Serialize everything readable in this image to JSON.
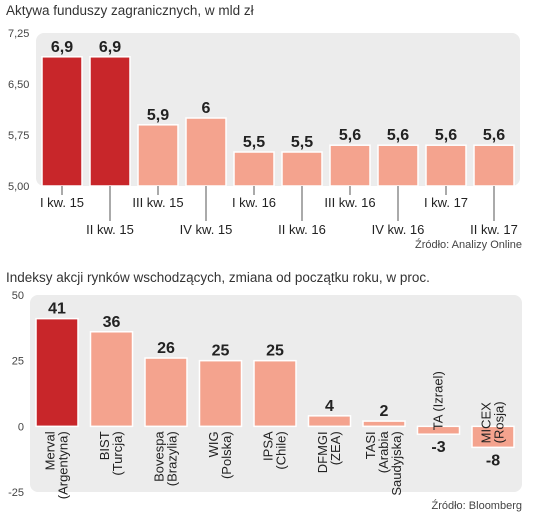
{
  "chart_data": [
    {
      "type": "bar",
      "title": "Aktywa funduszy zagranicznych, w mld zł",
      "source": "Źródło: Analizy Online",
      "categories": [
        "I kw. 15",
        "II kw. 15",
        "III kw. 15",
        "IV kw. 15",
        "I kw. 16",
        "II kw. 16",
        "III kw. 16",
        "IV kw. 16",
        "I kw. 17",
        "II kw. 17"
      ],
      "values": [
        6.9,
        6.9,
        5.9,
        6,
        5.5,
        5.5,
        5.6,
        5.6,
        5.6,
        5.6
      ],
      "value_labels": [
        "6,9",
        "6,9",
        "5,9",
        "6",
        "5,5",
        "5,5",
        "5,6",
        "5,6",
        "5,6",
        "5,6"
      ],
      "highlight": [
        true,
        true,
        false,
        false,
        false,
        false,
        false,
        false,
        false,
        false
      ],
      "yticks": [
        5.0,
        5.75,
        6.5,
        7.25
      ],
      "ytick_labels": [
        "5,00",
        "5,75",
        "6,50",
        "7,25"
      ],
      "ylim": [
        5.0,
        7.25
      ],
      "xlabel": "",
      "ylabel": "",
      "grid": false
    },
    {
      "type": "bar",
      "title": "Indeksy akcji rynków wschodzących, zmiana od początku roku, w proc.",
      "source": "Źródło: Bloomberg",
      "categories": [
        [
          "Merval",
          "(Argentyna)"
        ],
        [
          "BIST",
          "(Turcja)"
        ],
        [
          "Bovespa",
          "(Brazylia)"
        ],
        [
          "WIG",
          "(Polska)"
        ],
        [
          "IPSA",
          "(Chile)"
        ],
        [
          "DFMGI",
          "(ZEA)"
        ],
        [
          "TASI",
          "(Arabia",
          "Saudyjska)"
        ],
        [
          "TA (Izrael)"
        ],
        [
          "MICEX",
          "(Rosja)"
        ]
      ],
      "values": [
        41,
        36,
        26,
        25,
        25,
        4,
        2,
        -3,
        -8
      ],
      "value_labels": [
        "41",
        "36",
        "26",
        "25",
        "25",
        "4",
        "2",
        "-3",
        "-8"
      ],
      "highlight": [
        true,
        false,
        false,
        false,
        false,
        false,
        false,
        false,
        false
      ],
      "yticks": [
        -25,
        0,
        25,
        50
      ],
      "ytick_labels": [
        "-25",
        "0",
        "25",
        "50"
      ],
      "ylim": [
        -25,
        50
      ],
      "xlabel": "",
      "ylabel": "",
      "grid": false
    }
  ],
  "colors": {
    "highlight": "#c8262a",
    "bar": "#f4a38e",
    "panel": "#ececec",
    "tick_line": "#555555"
  }
}
